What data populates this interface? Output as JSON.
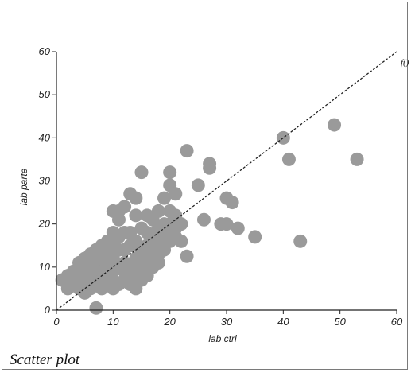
{
  "caption": "Scatter plot",
  "chart_data": {
    "type": "scatter",
    "xlabel": "lab ctrl",
    "ylabel": "lab parte",
    "xlim": [
      0,
      60
    ],
    "ylim": [
      0,
      60
    ],
    "x_ticks": [
      "0",
      "10",
      "20",
      "30",
      "40",
      "50",
      "60"
    ],
    "y_ticks": [
      "0",
      "10",
      "20",
      "30",
      "40",
      "50",
      "60"
    ],
    "grid": false,
    "point_color": "#9a9a9a",
    "reference_line": {
      "label": "f()",
      "from": [
        0,
        0
      ],
      "to": [
        60,
        60
      ],
      "style": "dotted"
    },
    "points": [
      [
        1,
        7
      ],
      [
        2,
        5
      ],
      [
        2,
        8
      ],
      [
        3,
        6
      ],
      [
        3,
        9
      ],
      [
        4,
        5
      ],
      [
        4,
        8
      ],
      [
        4,
        11
      ],
      [
        5,
        4
      ],
      [
        5,
        7
      ],
      [
        5,
        10
      ],
      [
        5,
        12
      ],
      [
        6,
        6
      ],
      [
        6,
        9
      ],
      [
        6,
        13
      ],
      [
        6,
        5
      ],
      [
        7,
        0.5
      ],
      [
        7,
        8
      ],
      [
        7,
        11
      ],
      [
        7,
        14
      ],
      [
        7,
        6
      ],
      [
        8,
        5
      ],
      [
        8,
        9
      ],
      [
        8,
        12
      ],
      [
        8,
        15
      ],
      [
        8,
        7
      ],
      [
        9,
        6
      ],
      [
        9,
        10
      ],
      [
        9,
        13
      ],
      [
        9,
        16
      ],
      [
        9,
        8
      ],
      [
        10,
        5
      ],
      [
        10,
        9
      ],
      [
        10,
        12
      ],
      [
        10,
        15
      ],
      [
        10,
        18
      ],
      [
        10,
        23
      ],
      [
        10,
        7
      ],
      [
        11,
        6
      ],
      [
        11,
        10
      ],
      [
        11,
        14
      ],
      [
        11,
        17
      ],
      [
        11,
        21
      ],
      [
        11,
        23
      ],
      [
        12,
        7
      ],
      [
        12,
        11
      ],
      [
        12,
        14
      ],
      [
        12,
        18
      ],
      [
        12,
        24
      ],
      [
        12,
        9
      ],
      [
        13,
        6
      ],
      [
        13,
        10
      ],
      [
        13,
        15
      ],
      [
        13,
        18
      ],
      [
        13,
        27
      ],
      [
        13,
        8
      ],
      [
        14,
        5
      ],
      [
        14,
        9
      ],
      [
        14,
        12
      ],
      [
        14,
        16
      ],
      [
        14,
        22
      ],
      [
        14,
        26
      ],
      [
        15,
        7
      ],
      [
        15,
        11
      ],
      [
        15,
        14
      ],
      [
        15,
        19
      ],
      [
        15,
        32
      ],
      [
        15,
        10
      ],
      [
        16,
        8
      ],
      [
        16,
        12
      ],
      [
        16,
        15
      ],
      [
        16,
        18
      ],
      [
        16,
        22
      ],
      [
        16,
        13
      ],
      [
        17,
        10
      ],
      [
        17,
        14
      ],
      [
        17,
        17
      ],
      [
        17,
        21
      ],
      [
        17,
        12
      ],
      [
        18,
        11
      ],
      [
        18,
        15
      ],
      [
        18,
        19
      ],
      [
        18,
        23
      ],
      [
        18,
        13
      ],
      [
        19,
        14
      ],
      [
        19,
        17
      ],
      [
        19,
        20
      ],
      [
        19,
        26
      ],
      [
        19,
        16
      ],
      [
        20,
        16
      ],
      [
        20,
        20
      ],
      [
        20,
        23
      ],
      [
        20,
        29
      ],
      [
        20,
        32
      ],
      [
        20,
        18
      ],
      [
        21,
        19
      ],
      [
        21,
        22
      ],
      [
        21,
        27
      ],
      [
        21,
        17
      ],
      [
        22,
        16
      ],
      [
        22,
        20
      ],
      [
        23,
        37
      ],
      [
        23,
        12.5
      ],
      [
        25,
        29
      ],
      [
        26,
        21
      ],
      [
        27,
        33
      ],
      [
        27,
        34
      ],
      [
        29,
        20
      ],
      [
        30,
        26
      ],
      [
        30,
        20
      ],
      [
        31,
        25
      ],
      [
        32,
        19
      ],
      [
        35,
        17
      ],
      [
        40,
        40
      ],
      [
        41,
        35
      ],
      [
        43,
        16
      ],
      [
        49,
        43
      ],
      [
        53,
        35
      ]
    ]
  }
}
